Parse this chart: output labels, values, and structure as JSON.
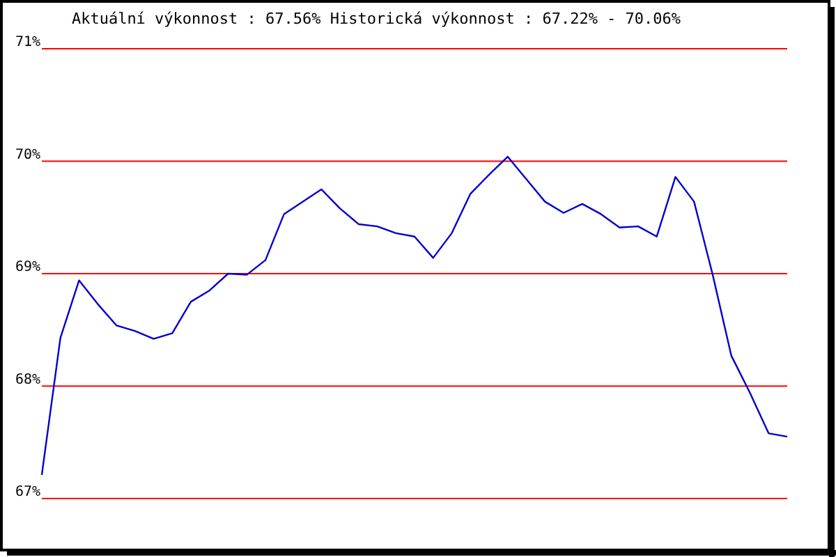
{
  "chart_data": {
    "type": "line",
    "title": "Aktuální výkonnost : 67.56%  Historická výkonnost : 67.22% - 70.06%",
    "categories": [
      null,
      null,
      null,
      null,
      null,
      null,
      null,
      null,
      null,
      null,
      null,
      null,
      null,
      null,
      null,
      null,
      null,
      null,
      null,
      null,
      null,
      null,
      null,
      null,
      null,
      null,
      null,
      null,
      null,
      null,
      null,
      null,
      null,
      null,
      null,
      null,
      null,
      null,
      null,
      null,
      null
    ],
    "series": [
      {
        "color": "#0000cc",
        "values": [
          67.21,
          68.43,
          68.94,
          68.73,
          68.54,
          68.49,
          68.42,
          68.47,
          68.75,
          68.85,
          69.0,
          68.99,
          69.12,
          69.53,
          69.64,
          69.75,
          69.58,
          69.44,
          69.42,
          69.36,
          69.33,
          69.14,
          69.36,
          69.71,
          69.88,
          70.04,
          69.84,
          69.64,
          69.54,
          69.62,
          69.53,
          69.41,
          69.42,
          69.33,
          69.86,
          69.64,
          68.99,
          68.27,
          67.94,
          67.58,
          67.55
        ]
      }
    ],
    "ylim": [
      67,
      71
    ],
    "yticks": [
      {
        "value": 67,
        "label": "67%"
      },
      {
        "value": 68,
        "label": "68%"
      },
      {
        "value": 69,
        "label": "69%"
      },
      {
        "value": 70,
        "label": "70%"
      },
      {
        "value": 71,
        "label": "71%"
      }
    ],
    "grid": "y",
    "tick_labels": "y",
    "marker": "none",
    "line_style": "solid"
  }
}
